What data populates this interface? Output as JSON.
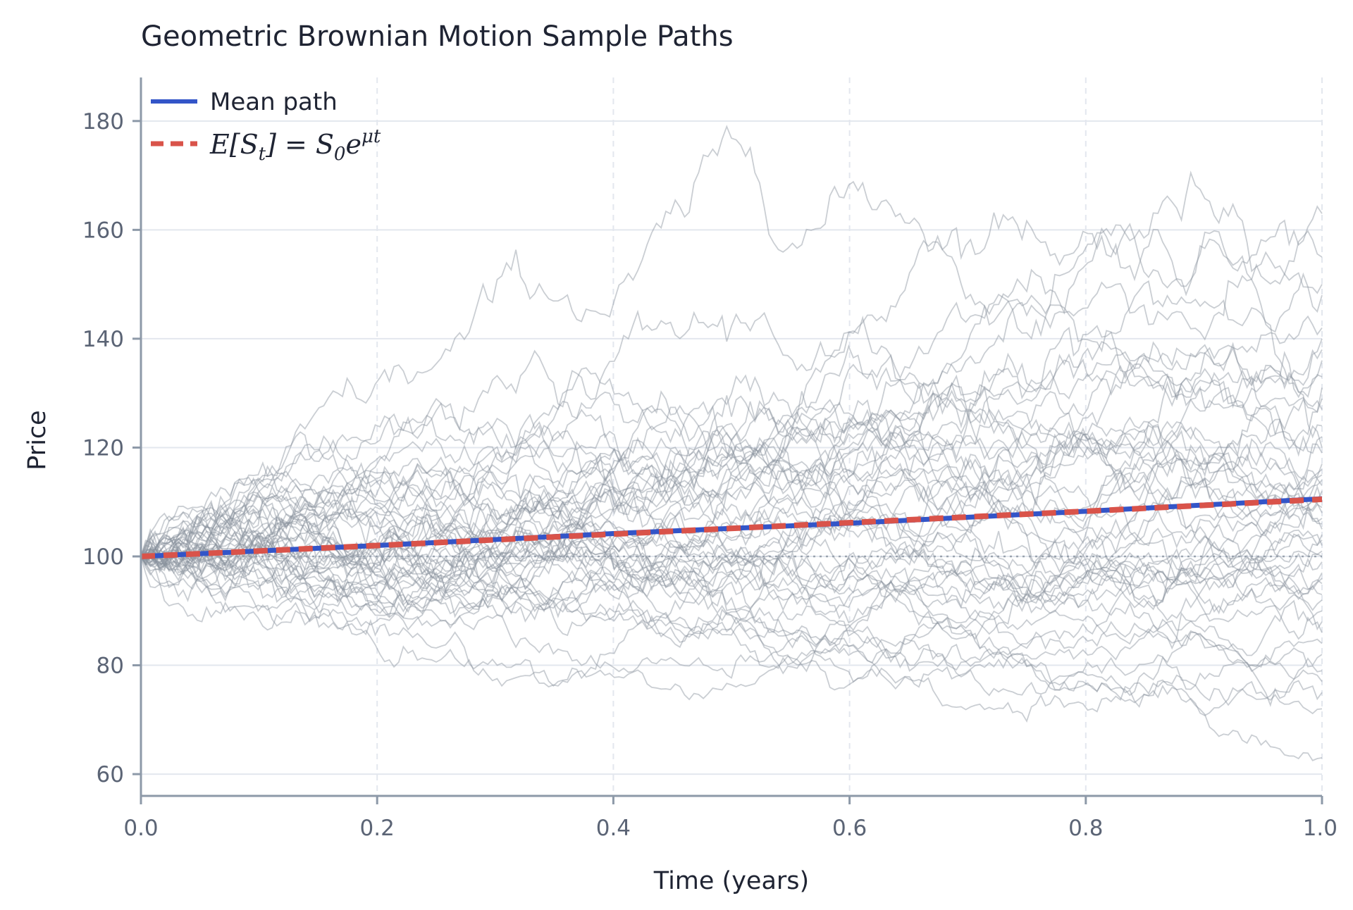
{
  "chart_data": {
    "type": "line",
    "title": "Geometric Brownian Motion Sample Paths",
    "xlabel": "Time (years)",
    "ylabel": "Price",
    "xlim": [
      0,
      1
    ],
    "ylim": [
      56,
      188
    ],
    "x_ticks": [
      "0.0",
      "0.2",
      "0.4",
      "0.6",
      "0.8",
      "1.0"
    ],
    "x_tick_values": [
      0,
      0.2,
      0.4,
      0.6,
      0.8,
      1.0
    ],
    "y_ticks": [
      "60",
      "80",
      "100",
      "120",
      "140",
      "160",
      "180"
    ],
    "y_tick_values": [
      60,
      80,
      100,
      120,
      140,
      160,
      180
    ],
    "grid": true,
    "legend_position": "top-left",
    "reference_line": {
      "y": 100,
      "style": "dotted"
    },
    "colors": {
      "mean": "#3355c8",
      "expected": "#d9534a",
      "paths": "#8a939e",
      "grid": "#e3e7ee",
      "axis": "#8d99a8"
    },
    "sample_paths": {
      "count": 50,
      "S0": 100,
      "final_values": [
        163,
        155,
        150,
        148,
        142,
        140,
        138,
        136,
        133,
        131,
        129,
        127,
        124,
        122,
        120,
        119,
        117,
        116,
        115,
        114,
        113,
        112,
        111,
        110,
        109,
        108,
        107,
        106,
        105,
        104,
        103,
        102,
        101,
        100,
        99,
        97,
        96,
        95,
        93,
        92,
        90,
        88,
        86,
        84,
        82,
        79,
        77,
        75,
        72,
        63
      ]
    },
    "series": [
      {
        "name": "Mean path",
        "x": [
          0,
          0.2,
          0.4,
          0.6,
          0.8,
          1.0
        ],
        "values": [
          100.0,
          102.0,
          104.2,
          106.1,
          108.3,
          110.6
        ]
      },
      {
        "name": "E[S_t] = S_0 e^{μt}",
        "x": [
          0,
          0.2,
          0.4,
          0.6,
          0.8,
          1.0
        ],
        "values": [
          100.0,
          102.0,
          104.1,
          106.2,
          108.3,
          110.5
        ]
      }
    ],
    "legend": [
      {
        "label": "Mean path",
        "style": "solid"
      },
      {
        "label_parts": [
          "E[S",
          "t",
          "] = S",
          "0",
          "e",
          "μt"
        ],
        "style": "dashed"
      }
    ]
  }
}
